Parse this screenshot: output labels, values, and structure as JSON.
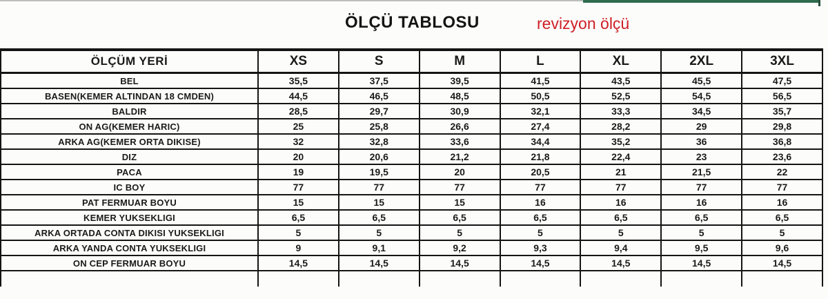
{
  "page": {
    "background": "#fcfcfa"
  },
  "header": {
    "title": "ÖLÇÜ TABLOSU",
    "revision_label": "revizyon ölçü",
    "revision_color": "#cd2026",
    "accent_green": "#2f6b4f"
  },
  "table": {
    "measurement_header": "ÖLÇÜM YERİ",
    "size_headers": [
      "XS",
      "S",
      "M",
      "L",
      "XL",
      "2XL",
      "3XL"
    ],
    "rows": [
      {
        "label": "BEL",
        "values": [
          "35,5",
          "37,5",
          "39,5",
          "41,5",
          "43,5",
          "45,5",
          "47,5"
        ]
      },
      {
        "label": "BASEN(KEMER ALTINDAN 18 CMDEN)",
        "values": [
          "44,5",
          "46,5",
          "48,5",
          "50,5",
          "52,5",
          "54,5",
          "56,5"
        ]
      },
      {
        "label": "BALDIR",
        "values": [
          "28,5",
          "29,7",
          "30,9",
          "32,1",
          "33,3",
          "34,5",
          "35,7"
        ]
      },
      {
        "label": "ON AG(KEMER HARIC)",
        "values": [
          "25",
          "25,8",
          "26,6",
          "27,4",
          "28,2",
          "29",
          "29,8"
        ]
      },
      {
        "label": "ARKA AG(KEMER ORTA DIKISE)",
        "values": [
          "32",
          "32,8",
          "33,6",
          "34,4",
          "35,2",
          "36",
          "36,8"
        ]
      },
      {
        "label": "DIZ",
        "values": [
          "20",
          "20,6",
          "21,2",
          "21,8",
          "22,4",
          "23",
          "23,6"
        ]
      },
      {
        "label": "PACA",
        "values": [
          "19",
          "19,5",
          "20",
          "20,5",
          "21",
          "21,5",
          "22"
        ]
      },
      {
        "label": "IC BOY",
        "values": [
          "77",
          "77",
          "77",
          "77",
          "77",
          "77",
          "77"
        ]
      },
      {
        "label": "PAT FERMUAR BOYU",
        "values": [
          "15",
          "15",
          "15",
          "16",
          "16",
          "16",
          "16"
        ]
      },
      {
        "label": "KEMER YUKSEKLIGI",
        "values": [
          "6,5",
          "6,5",
          "6,5",
          "6,5",
          "6,5",
          "6,5",
          "6,5"
        ]
      },
      {
        "label": "ARKA ORTADA CONTA DIKISI YUKSEKLIGI",
        "values": [
          "5",
          "5",
          "5",
          "5",
          "5",
          "5",
          "5"
        ]
      },
      {
        "label": "ARKA YANDA CONTA YUKSEKLIGI",
        "values": [
          "9",
          "9,1",
          "9,2",
          "9,3",
          "9,4",
          "9,5",
          "9,6"
        ]
      },
      {
        "label": "ON CEP FERMUAR BOYU",
        "values": [
          "14,5",
          "14,5",
          "14,5",
          "14,5",
          "14,5",
          "14,5",
          "14,5"
        ]
      }
    ]
  }
}
